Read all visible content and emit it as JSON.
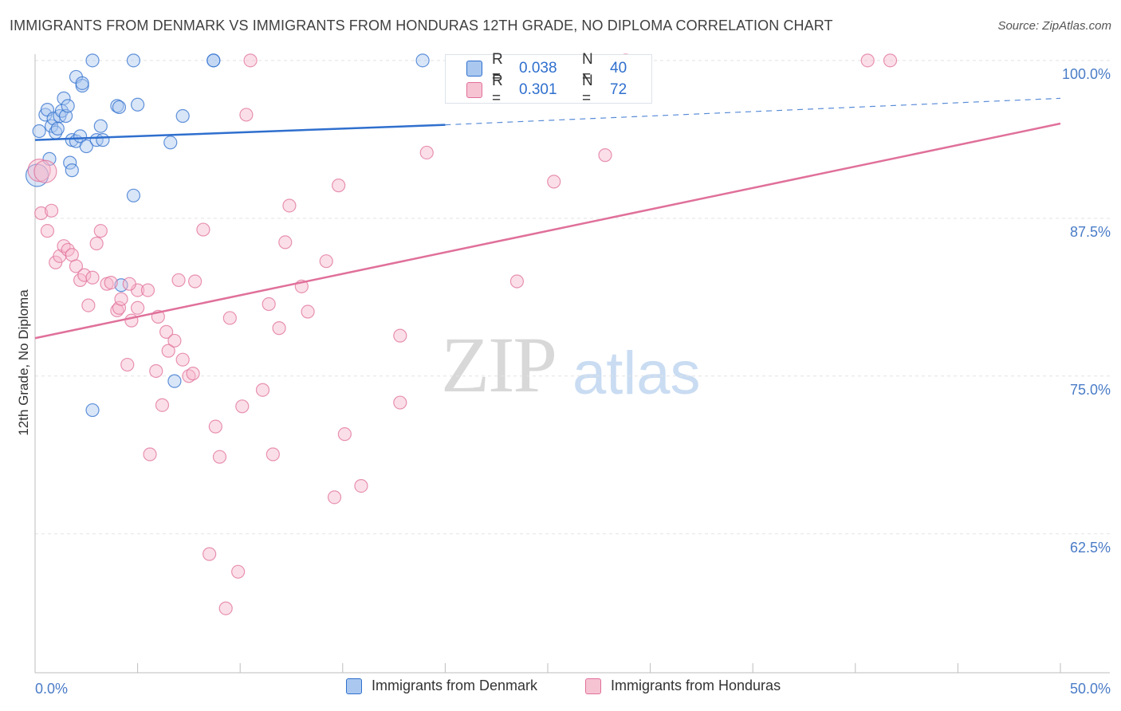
{
  "title": "IMMIGRANTS FROM DENMARK VS IMMIGRANTS FROM HONDURAS 12TH GRADE, NO DIPLOMA CORRELATION CHART",
  "source": "Source: ZipAtlas.com",
  "watermark_zip": "ZIP",
  "watermark_atlas": "atlas",
  "colors": {
    "blue": "#2f6fce",
    "blue_fill": "#aac8ef",
    "pink": "#e0709a",
    "pink_fill": "#f6b9cc"
  },
  "legend_top": {
    "r_label": "R =",
    "n_label": "N =",
    "rows": [
      {
        "r": "0.038",
        "n": "40"
      },
      {
        "r": "0.301",
        "n": "72"
      }
    ]
  },
  "chart_data": {
    "type": "scatter",
    "title": "IMMIGRANTS FROM DENMARK VS IMMIGRANTS FROM HONDURAS 12TH GRADE, NO DIPLOMA CORRELATION CHART",
    "xlabel": "",
    "ylabel": "12th Grade, No Diploma",
    "xlim": [
      0,
      50
    ],
    "ylim": [
      51.5,
      101
    ],
    "x_tick_labels": [
      "0.0%",
      "50.0%"
    ],
    "y_ticks": [
      62.5,
      75.0,
      87.5,
      100.0
    ],
    "y_tick_labels": [
      "62.5%",
      "75.0%",
      "87.5%",
      "100.0%"
    ],
    "grid": true,
    "legend_placement": "bottom",
    "series": [
      {
        "name": "Immigrants from Denmark",
        "color": "#2f6fce",
        "trend": {
          "x": [
            0,
            20
          ],
          "y": [
            93.7,
            94.9
          ],
          "dashed_to": [
            50,
            97.0
          ]
        },
        "points": [
          [
            0.2,
            94.4
          ],
          [
            0.5,
            95.7
          ],
          [
            0.6,
            96.1
          ],
          [
            0.7,
            92.2
          ],
          [
            0.8,
            94.8
          ],
          [
            0.9,
            95.4
          ],
          [
            1.0,
            94.3
          ],
          [
            1.1,
            94.6
          ],
          [
            1.2,
            95.6
          ],
          [
            1.3,
            96.0
          ],
          [
            1.4,
            97.0
          ],
          [
            1.5,
            95.6
          ],
          [
            1.6,
            96.4
          ],
          [
            1.7,
            91.9
          ],
          [
            1.8,
            91.3
          ],
          [
            1.8,
            93.7
          ],
          [
            2.0,
            93.6
          ],
          [
            2.2,
            94.0
          ],
          [
            2.0,
            98.7
          ],
          [
            2.3,
            98.0
          ],
          [
            2.3,
            98.2
          ],
          [
            2.5,
            93.2
          ],
          [
            2.8,
            100.0
          ],
          [
            3.0,
            93.7
          ],
          [
            3.2,
            94.8
          ],
          [
            3.3,
            93.7
          ],
          [
            4.0,
            96.4
          ],
          [
            4.1,
            96.3
          ],
          [
            4.2,
            82.2
          ],
          [
            4.8,
            100.0
          ],
          [
            4.8,
            89.3
          ],
          [
            5.0,
            96.5
          ],
          [
            6.6,
            93.5
          ],
          [
            7.2,
            95.6
          ],
          [
            6.8,
            74.6
          ],
          [
            8.7,
            100.0
          ],
          [
            8.7,
            100.0
          ],
          [
            18.9,
            100.0
          ],
          [
            2.8,
            72.3
          ],
          [
            0.1,
            90.9
          ]
        ]
      },
      {
        "name": "Immigrants from Honduras",
        "color": "#e0709a",
        "trend": {
          "x": [
            0,
            50
          ],
          "y": [
            78.0,
            95.0
          ]
        },
        "points": [
          [
            0.2,
            91.3
          ],
          [
            0.3,
            87.9
          ],
          [
            0.6,
            86.5
          ],
          [
            0.8,
            88.1
          ],
          [
            1.0,
            84.0
          ],
          [
            1.2,
            84.5
          ],
          [
            1.4,
            85.3
          ],
          [
            1.6,
            85.0
          ],
          [
            1.8,
            84.6
          ],
          [
            2.0,
            83.7
          ],
          [
            2.2,
            82.6
          ],
          [
            2.4,
            83.0
          ],
          [
            2.6,
            80.6
          ],
          [
            2.8,
            82.8
          ],
          [
            3.0,
            85.5
          ],
          [
            3.2,
            86.5
          ],
          [
            3.5,
            82.3
          ],
          [
            3.7,
            82.4
          ],
          [
            4.0,
            80.2
          ],
          [
            4.1,
            80.4
          ],
          [
            4.2,
            81.1
          ],
          [
            4.5,
            75.9
          ],
          [
            4.7,
            79.4
          ],
          [
            5.0,
            80.4
          ],
          [
            5.0,
            81.8
          ],
          [
            5.5,
            81.8
          ],
          [
            5.6,
            68.8
          ],
          [
            5.9,
            75.4
          ],
          [
            6.0,
            79.7
          ],
          [
            6.2,
            72.7
          ],
          [
            6.4,
            78.5
          ],
          [
            6.5,
            77.0
          ],
          [
            6.8,
            77.8
          ],
          [
            7.0,
            82.6
          ],
          [
            7.2,
            76.3
          ],
          [
            7.5,
            75.0
          ],
          [
            7.7,
            75.2
          ],
          [
            7.8,
            82.5
          ],
          [
            8.2,
            86.6
          ],
          [
            8.5,
            60.9
          ],
          [
            8.8,
            71.0
          ],
          [
            9.0,
            68.6
          ],
          [
            9.3,
            56.6
          ],
          [
            9.5,
            79.6
          ],
          [
            9.9,
            59.5
          ],
          [
            10.1,
            72.6
          ],
          [
            10.3,
            95.7
          ],
          [
            10.5,
            100.0
          ],
          [
            11.1,
            73.9
          ],
          [
            11.4,
            80.7
          ],
          [
            11.6,
            68.8
          ],
          [
            11.9,
            78.8
          ],
          [
            12.2,
            85.6
          ],
          [
            12.4,
            88.5
          ],
          [
            13.0,
            82.1
          ],
          [
            13.3,
            80.1
          ],
          [
            14.2,
            84.1
          ],
          [
            14.6,
            65.4
          ],
          [
            14.8,
            90.1
          ],
          [
            15.1,
            70.4
          ],
          [
            15.9,
            66.3
          ],
          [
            17.8,
            78.2
          ],
          [
            17.8,
            72.9
          ],
          [
            19.1,
            92.7
          ],
          [
            23.5,
            82.5
          ],
          [
            25.3,
            90.4
          ],
          [
            27.8,
            92.5
          ],
          [
            28.8,
            100.0
          ],
          [
            40.6,
            100.0
          ],
          [
            41.7,
            100.0
          ],
          [
            0.5,
            91.2
          ],
          [
            4.6,
            82.3
          ]
        ]
      }
    ]
  }
}
